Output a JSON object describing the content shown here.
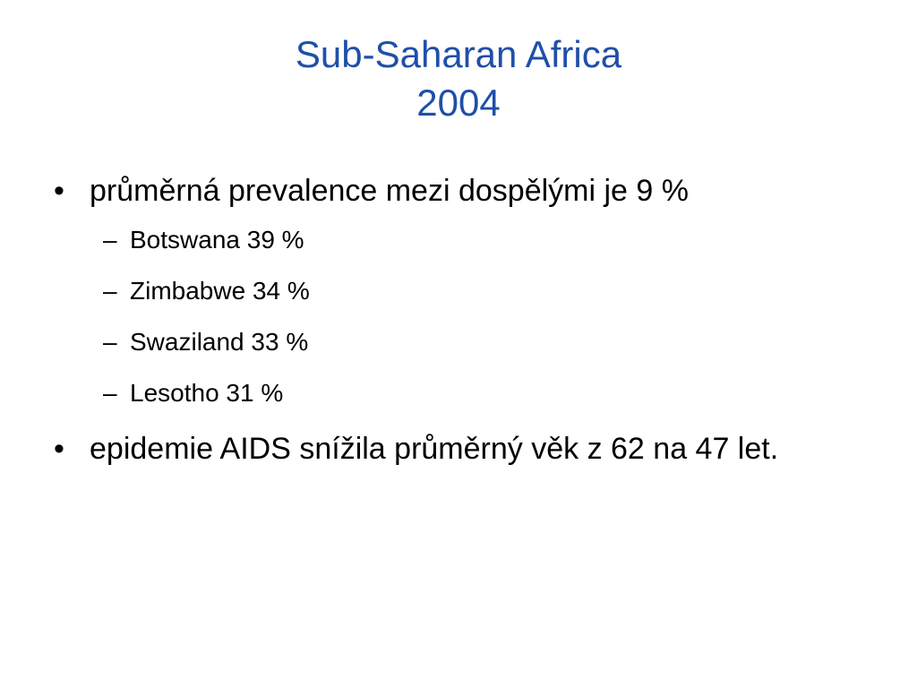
{
  "title": [
    "Sub-Saharan Africa",
    "2004"
  ],
  "bullets": [
    {
      "text": "průměrná prevalence mezi dospělými je 9 %",
      "sub": [
        "Botswana 39 %",
        "Zimbabwe 34 %",
        "Swaziland 33 %",
        "Lesotho 31 %"
      ]
    },
    {
      "text": "epidemie AIDS snížila průměrný věk z 62 na 47 let.",
      "sub": []
    }
  ]
}
